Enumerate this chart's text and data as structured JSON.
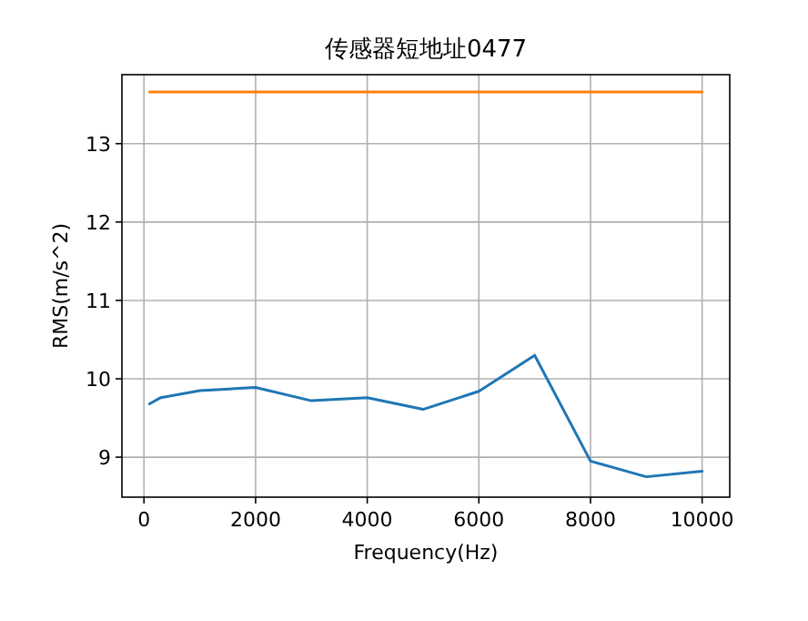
{
  "chart_data": {
    "type": "line",
    "title": "传感器短地址0477",
    "xlabel": "Frequency(Hz)",
    "ylabel": "RMS(m/s^2)",
    "xlim": [
      -395,
      10495
    ],
    "xticks": [
      0,
      2000,
      4000,
      6000,
      8000,
      10000
    ],
    "ylim": [
      8.49,
      13.88
    ],
    "yticks": [
      9,
      10,
      11,
      12,
      13
    ],
    "grid": true,
    "series": [
      {
        "color": "#1f77b4",
        "x": [
          100,
          300,
          1000,
          2000,
          3000,
          4000,
          5000,
          6000,
          7000,
          8000,
          9000,
          10000
        ],
        "values": [
          9.68,
          9.76,
          9.85,
          9.89,
          9.72,
          9.76,
          9.61,
          9.84,
          10.3,
          8.95,
          8.75,
          8.82
        ]
      },
      {
        "color": "#ff7f0e",
        "x": [
          100,
          10000
        ],
        "values": [
          13.66,
          13.66
        ]
      }
    ]
  }
}
